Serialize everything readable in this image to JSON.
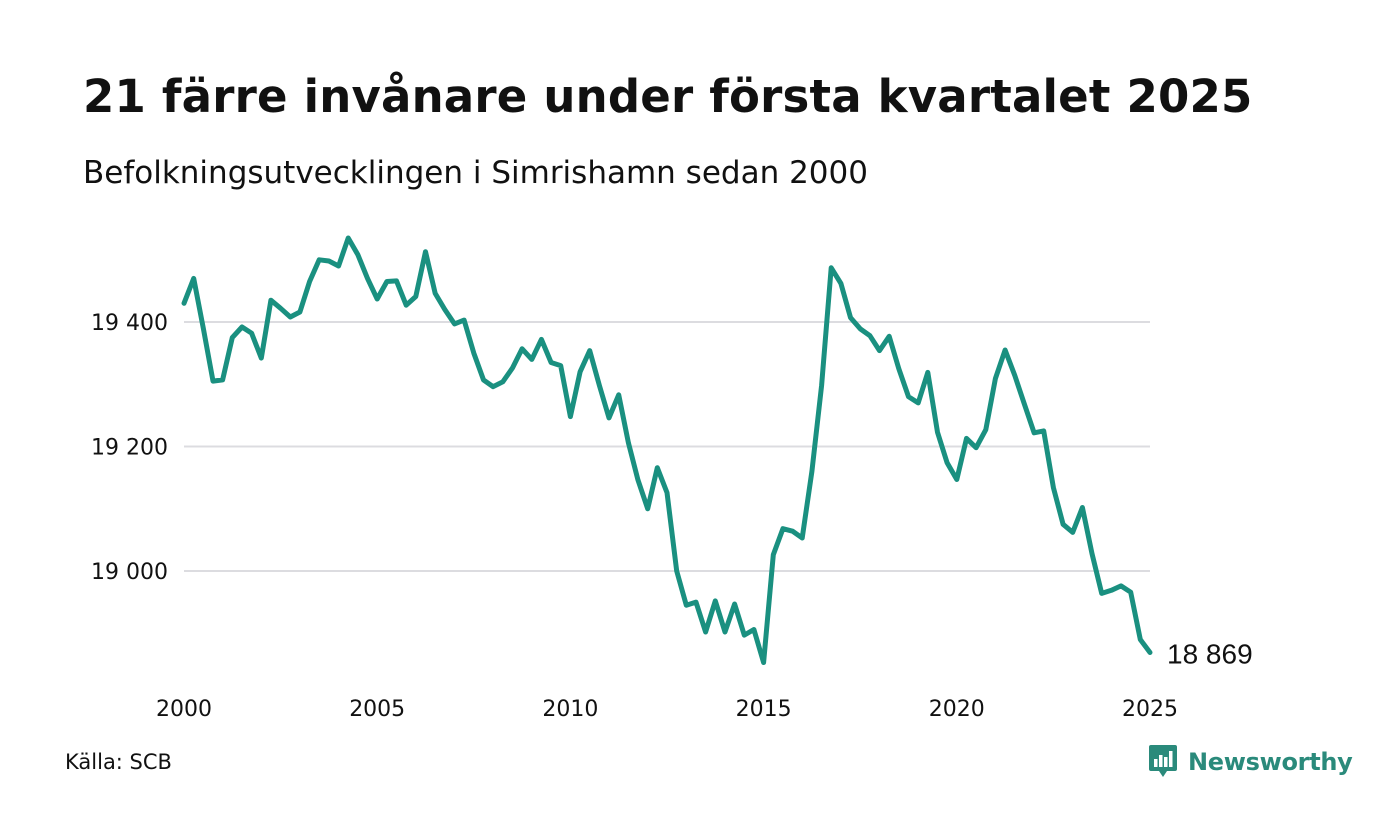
{
  "title": "21 färre invånare under första kvartalet 2025",
  "subtitle": "Befolkningsutvecklingen i Simrishamn sedan 2000",
  "source": "Källa: SCB",
  "brand": {
    "name": "Newsworthy",
    "logo_icon": "newsworthy-logo-icon"
  },
  "colors": {
    "line": "#1a9080",
    "grid": "#dcdce0",
    "text": "#111111",
    "brand": "#2a8a7b"
  },
  "chart_data": {
    "type": "line",
    "title": "21 färre invånare under första kvartalet 2025",
    "subtitle": "Befolkningsutvecklingen i Simrishamn sedan 2000",
    "xlabel": "",
    "ylabel": "",
    "x_ticks": [
      "2000",
      "2005",
      "2010",
      "2015",
      "2020",
      "2025"
    ],
    "y_ticks": [
      "19 000",
      "19 200",
      "19 400"
    ],
    "y_tick_values": [
      19000,
      19200,
      19400
    ],
    "xlim": [
      2000,
      2025
    ],
    "ylim": [
      18830,
      19560
    ],
    "grid": true,
    "end_label": "18 869",
    "series": [
      {
        "x": [
          2000.0,
          2000.25,
          2000.5,
          2000.75,
          2001.0,
          2001.25,
          2001.5,
          2001.75,
          2002.0,
          2002.25,
          2002.5,
          2002.75,
          2003.0,
          2003.25,
          2003.5,
          2003.75,
          2004.0,
          2004.25,
          2004.5,
          2004.75,
          2005.0,
          2005.25,
          2005.5,
          2005.75,
          2006.0,
          2006.25,
          2006.5,
          2006.75,
          2007.0,
          2007.25,
          2007.5,
          2007.75,
          2008.0,
          2008.25,
          2008.5,
          2008.75,
          2009.0,
          2009.25,
          2009.5,
          2009.75,
          2010.0,
          2010.25,
          2010.5,
          2010.75,
          2011.0,
          2011.25,
          2011.5,
          2011.75,
          2012.0,
          2012.25,
          2012.5,
          2012.75,
          2013.0,
          2013.25,
          2013.5,
          2013.75,
          2014.0,
          2014.25,
          2014.5,
          2014.75,
          2015.0,
          2015.25,
          2015.5,
          2015.75,
          2016.0,
          2016.25,
          2016.5,
          2016.75,
          2017.0,
          2017.25,
          2017.5,
          2017.75,
          2018.0,
          2018.25,
          2018.5,
          2018.75,
          2019.0,
          2019.25,
          2019.5,
          2019.75,
          2020.0,
          2020.25,
          2020.5,
          2020.75,
          2021.0,
          2021.25,
          2021.5,
          2021.75,
          2022.0,
          2022.25,
          2022.5,
          2022.75,
          2023.0,
          2023.25,
          2023.5,
          2023.75,
          2024.0,
          2024.25,
          2024.5,
          2024.75,
          2025.0
        ],
        "values": [
          19430,
          19470,
          19390,
          19305,
          19307,
          19375,
          19392,
          19382,
          19342,
          19435,
          19422,
          19408,
          19416,
          19465,
          19500,
          19498,
          19490,
          19535,
          19508,
          19470,
          19437,
          19465,
          19466,
          19427,
          19441,
          19513,
          19446,
          19420,
          19397,
          19403,
          19350,
          19307,
          19296,
          19304,
          19326,
          19357,
          19340,
          19372,
          19335,
          19330,
          19248,
          19320,
          19354,
          19298,
          19246,
          19283,
          19206,
          19146,
          19100,
          19166,
          19126,
          19000,
          18945,
          18950,
          18902,
          18952,
          18902,
          18947,
          18897,
          18906,
          18853,
          19026,
          19068,
          19064,
          19053,
          19160,
          19298,
          19487,
          19462,
          19407,
          19389,
          19378,
          19354,
          19377,
          19325,
          19280,
          19270,
          19319,
          19223,
          19174,
          19147,
          19213,
          19198,
          19227,
          19309,
          19355,
          19314,
          19268,
          19222,
          19225,
          19134,
          19075,
          19062,
          19102,
          19028,
          18964,
          18969,
          18976,
          18966,
          18890,
          18869
        ]
      }
    ]
  }
}
